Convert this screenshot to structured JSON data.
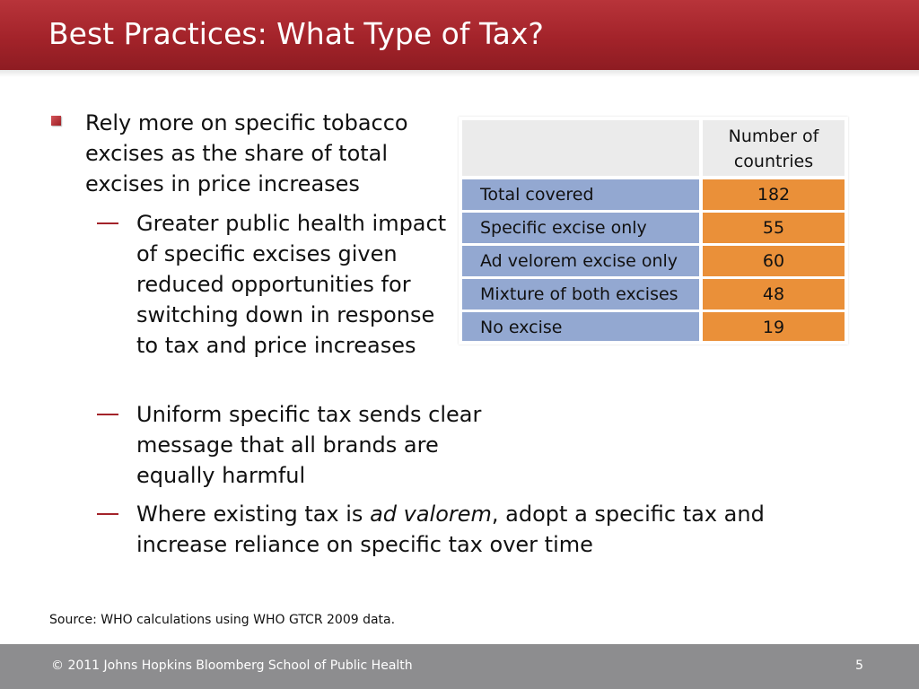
{
  "slide": {
    "title": "Best Practices: What Type of Tax?"
  },
  "bullets": {
    "main": "Rely more on specific tobacco excises as the share of total excises in price increases",
    "dash_glyph": "—",
    "sub": [
      {
        "text": "Greater public health impact of specific excises given reduced opportunities for switching down in response to tax and price increases"
      },
      {
        "text": "Uniform specific tax sends clear message that all brands are equally harmful"
      },
      {
        "before": "Where existing tax is ",
        "emphasis": "ad valorem",
        "after": ", adopt a specific tax and increase reliance on specific tax over time"
      }
    ]
  },
  "table": {
    "header": "Number of countries",
    "rows": [
      {
        "label": "Total covered",
        "value": "182"
      },
      {
        "label": "Specific excise only",
        "value": "55"
      },
      {
        "label": "Ad velorem excise only",
        "value": "60"
      },
      {
        "label": "Mixture of both excises",
        "value": "48"
      },
      {
        "label": "No excise",
        "value": "19"
      }
    ],
    "colors": {
      "label_bg": "#93a8d1",
      "value_bg": "#ea9039",
      "header_bg": "#ebebeb"
    }
  },
  "source": "Source: WHO calculations using WHO GTCR 2009 data.",
  "footer": {
    "copyright": "© 2011 Johns Hopkins Bloomberg School of Public Health",
    "page_number": "5"
  },
  "colors": {
    "header": "#a3232a",
    "footer": "#8d8d8f"
  }
}
